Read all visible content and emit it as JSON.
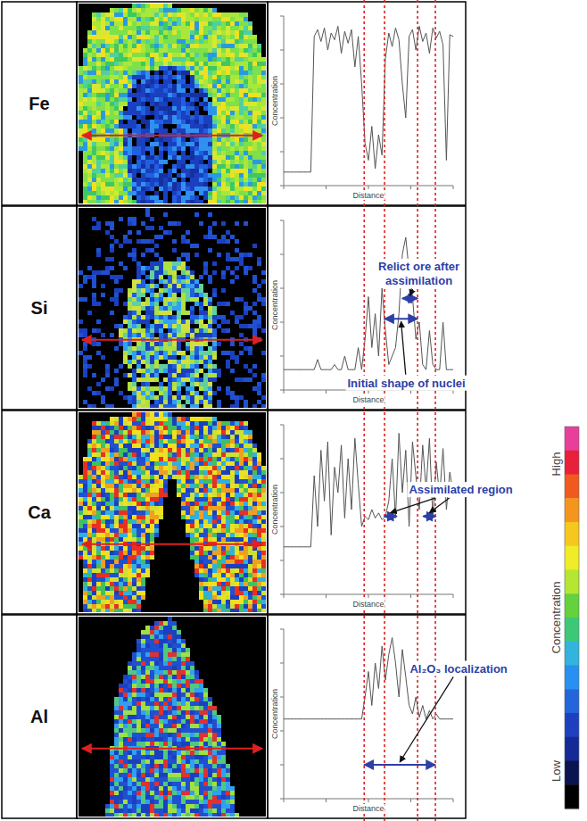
{
  "chart_data": [
    {
      "type": "line",
      "title": "Fe",
      "x_label": "Distance",
      "y_label": "Concentration",
      "x": [
        0,
        2,
        4,
        6,
        8,
        10,
        12,
        14,
        16,
        18,
        20,
        22,
        24,
        26,
        28,
        30,
        32,
        34,
        36,
        38,
        40,
        42,
        44,
        46,
        48,
        50,
        52,
        54,
        56,
        58,
        60,
        62,
        64,
        66,
        68,
        70,
        72,
        74,
        76,
        78,
        80,
        82,
        84,
        86,
        88,
        90,
        92,
        94,
        96,
        98,
        100
      ],
      "values": [
        8,
        8,
        8,
        8,
        8,
        8,
        8,
        8,
        8,
        88,
        92,
        85,
        93,
        80,
        90,
        86,
        94,
        78,
        91,
        84,
        92,
        70,
        88,
        60,
        25,
        15,
        35,
        10,
        30,
        18,
        75,
        90,
        82,
        93,
        86,
        60,
        40,
        88,
        92,
        80,
        94,
        85,
        90,
        78,
        93,
        87,
        91,
        83,
        15,
        89,
        88
      ],
      "color": "#555555",
      "xlim": [
        0,
        100
      ],
      "ylim": [
        0,
        100
      ],
      "xticks": [
        0,
        25,
        50,
        75,
        100
      ],
      "yticks": [
        0,
        20,
        40,
        60,
        80,
        100
      ],
      "tick_labels": false
    },
    {
      "type": "line",
      "title": "Si",
      "x_label": "Distance",
      "y_label": "Concentration",
      "x": [
        0,
        2,
        4,
        6,
        8,
        10,
        12,
        14,
        16,
        18,
        20,
        22,
        24,
        26,
        28,
        30,
        32,
        34,
        36,
        38,
        40,
        42,
        44,
        46,
        48,
        50,
        52,
        54,
        56,
        58,
        60,
        62,
        64,
        66,
        68,
        70,
        72,
        74,
        76,
        78,
        80,
        82,
        84,
        86,
        88,
        90,
        92,
        94,
        96,
        98,
        100
      ],
      "values": [
        12,
        12,
        12,
        12,
        12,
        12,
        12,
        12,
        12,
        12,
        18,
        12,
        12,
        12,
        12,
        15,
        12,
        12,
        20,
        12,
        12,
        12,
        25,
        12,
        30,
        55,
        25,
        45,
        20,
        60,
        35,
        15,
        20,
        25,
        45,
        80,
        90,
        70,
        55,
        30,
        40,
        15,
        12,
        35,
        15,
        12,
        12,
        40,
        12,
        12,
        12
      ],
      "color": "#555555",
      "xlim": [
        0,
        100
      ],
      "ylim": [
        0,
        100
      ],
      "xticks": [
        0,
        25,
        50,
        75,
        100
      ],
      "yticks": [
        0,
        20,
        40,
        60,
        80,
        100
      ],
      "tick_labels": false,
      "annotations": [
        {
          "text": "Relict ore after assimilation",
          "span": [
            70,
            79
          ],
          "span_y": 54
        },
        {
          "text": "Initial shape of nuclei",
          "span": [
            59.5,
            79
          ],
          "span_y": 42
        }
      ]
    },
    {
      "type": "line",
      "title": "Ca",
      "x_label": "Distance",
      "y_label": "Concentration",
      "x": [
        0,
        2,
        4,
        6,
        8,
        10,
        12,
        14,
        16,
        18,
        20,
        22,
        24,
        26,
        28,
        30,
        32,
        34,
        36,
        38,
        40,
        42,
        44,
        46,
        48,
        50,
        52,
        54,
        56,
        58,
        60,
        62,
        64,
        66,
        68,
        70,
        72,
        74,
        76,
        78,
        80,
        82,
        84,
        86,
        88,
        90,
        92,
        94,
        96,
        98,
        100
      ],
      "values": [
        28,
        28,
        28,
        28,
        28,
        28,
        28,
        28,
        28,
        70,
        40,
        85,
        55,
        90,
        35,
        75,
        60,
        88,
        45,
        80,
        50,
        92,
        65,
        40,
        46,
        44,
        50,
        45,
        48,
        44,
        46,
        55,
        80,
        45,
        95,
        60,
        85,
        40,
        90,
        70,
        50,
        88,
        62,
        92,
        45,
        78,
        58,
        86,
        50,
        72,
        60
      ],
      "color": "#555555",
      "xlim": [
        0,
        100
      ],
      "ylim": [
        0,
        100
      ],
      "xticks": [
        0,
        25,
        50,
        75,
        100
      ],
      "yticks": [
        0,
        20,
        40,
        60,
        80,
        100
      ],
      "tick_labels": false,
      "annotations": [
        {
          "text": "Assimilated region",
          "points": [
            [
              63,
              46
            ],
            [
              86,
              46
            ]
          ]
        }
      ]
    },
    {
      "type": "line",
      "title": "Al",
      "x_label": "Distance",
      "y_label": "Concentration",
      "x": [
        0,
        2,
        4,
        6,
        8,
        10,
        12,
        14,
        16,
        18,
        20,
        22,
        24,
        26,
        28,
        30,
        32,
        34,
        36,
        38,
        40,
        42,
        44,
        46,
        48,
        50,
        52,
        54,
        56,
        58,
        60,
        62,
        64,
        66,
        68,
        70,
        72,
        74,
        76,
        78,
        80,
        82,
        84,
        86,
        88,
        90,
        92,
        94,
        96,
        98,
        100
      ],
      "values": [
        47,
        47,
        47,
        47,
        47,
        47,
        47,
        47,
        47,
        47,
        47,
        47,
        47,
        47,
        47,
        47,
        47,
        47,
        47,
        47,
        47,
        47,
        47,
        47,
        60,
        75,
        55,
        80,
        65,
        90,
        70,
        85,
        95,
        80,
        60,
        88,
        72,
        55,
        50,
        60,
        48,
        55,
        47,
        52,
        47,
        50,
        47,
        47,
        47,
        47,
        47
      ],
      "color": "#555555",
      "xlim": [
        0,
        100
      ],
      "ylim": [
        0,
        100
      ],
      "xticks": [
        0,
        25,
        50,
        75,
        100
      ],
      "yticks": [
        0,
        20,
        40,
        60,
        80,
        100
      ],
      "tick_labels": false,
      "annotations": [
        {
          "text": "Al₂O₃ localization",
          "span": [
            47.5,
            89.5
          ],
          "span_y": 20
        }
      ]
    }
  ],
  "boundaries": [
    47.5,
    59.5,
    79,
    89.5
  ],
  "colorbar": {
    "labels": [
      "High",
      "Concentration",
      "Low"
    ],
    "colors": [
      "#e8409a",
      "#e8203a",
      "#f05a1e",
      "#f4961e",
      "#f6c81e",
      "#f0ec28",
      "#b4e632",
      "#64d23c",
      "#3cc878",
      "#32b4dc",
      "#2890f0",
      "#2464dc",
      "#1e40c0",
      "#142a96",
      "#0a1450",
      "#000000"
    ]
  }
}
